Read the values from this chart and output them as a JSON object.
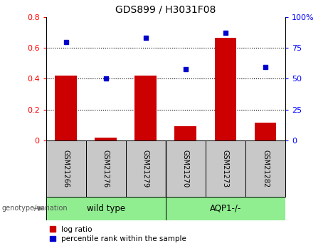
{
  "title": "GDS899 / H3031F08",
  "samples": [
    "GSM21266",
    "GSM21276",
    "GSM21279",
    "GSM21270",
    "GSM21273",
    "GSM21282"
  ],
  "log_ratio": [
    0.42,
    0.015,
    0.42,
    0.09,
    0.665,
    0.115
  ],
  "percentile_rank": [
    0.8,
    0.5,
    0.835,
    0.575,
    0.875,
    0.595
  ],
  "bar_color": "#cc0000",
  "dot_color": "#0000cc",
  "left_ylim": [
    0,
    0.8
  ],
  "right_ylim": [
    0,
    1.0
  ],
  "left_yticks": [
    0,
    0.2,
    0.4,
    0.6,
    0.8
  ],
  "right_yticks": [
    0,
    0.25,
    0.5,
    0.75,
    1.0
  ],
  "right_yticklabels": [
    "0",
    "25",
    "50",
    "75",
    "100%"
  ],
  "left_yticklabels": [
    "0",
    "0.2",
    "0.4",
    "0.6",
    "0.8"
  ],
  "grid_lines": [
    0.2,
    0.4,
    0.6
  ],
  "bar_width": 0.55,
  "group_bg_color": "#c8c8c8",
  "green_color": "#90EE90",
  "wild_type_label": "wild type",
  "aqp1_label": "AQP1-/-",
  "genotype_label": "genotype/variation",
  "legend_log_ratio": "log ratio",
  "legend_percentile": "percentile rank within the sample",
  "title_fontsize": 10,
  "tick_fontsize": 8,
  "sample_fontsize": 7,
  "group_fontsize": 8.5,
  "legend_fontsize": 7.5
}
